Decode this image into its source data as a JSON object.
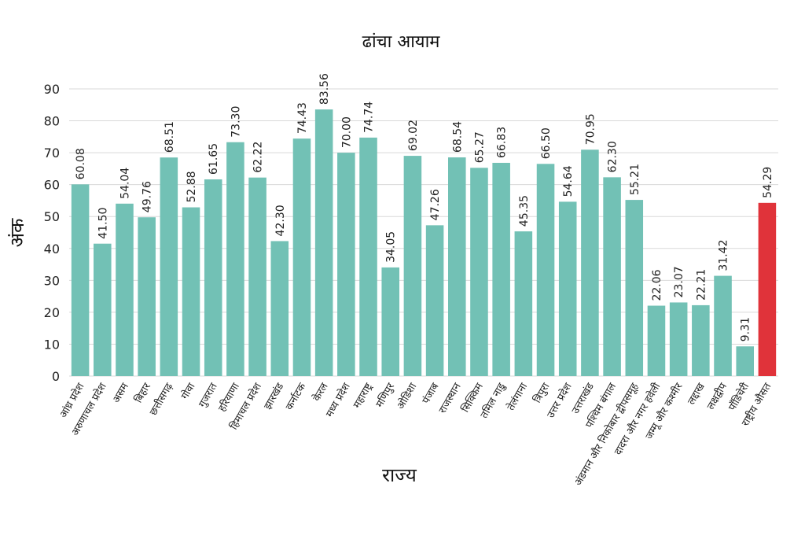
{
  "chart_data": {
    "type": "bar",
    "title": "ढांचा आयाम",
    "xlabel": "राज्य",
    "ylabel": "अंक",
    "ylim": [
      0,
      90
    ],
    "yticks": [
      0,
      10,
      20,
      30,
      40,
      50,
      60,
      70,
      80,
      90
    ],
    "grid": true,
    "categories": [
      "आंध्र प्रदेश",
      "अरुणाचल प्रदेश",
      "असम",
      "बिहार",
      "छत्तीसगढ़",
      "गोवा",
      "गुजरात",
      "हरियाणा",
      "हिमाचल प्रदेश",
      "झारखंड",
      "कर्नाटक",
      "केरल",
      "मध्य प्रदेश",
      "महाराष्ट्र",
      "मणिपुर",
      "ओडिशा",
      "पंजाब",
      "राजस्थान",
      "सिक्किम",
      "तमिल नाडु",
      "तेलंगाना",
      "त्रिपुरा",
      "उत्तर प्रदेश",
      "उत्तराखंड",
      "पश्चिम बंगाल",
      "अंडमान और निकोबार द्वीपसमूह",
      "दादरा और नगर हवेली",
      "जम्मू और कश्मीर",
      "लद्दाख",
      "लक्षद्वीप",
      "पॉंडिचेरी",
      "राष्ट्रीय औसत"
    ],
    "value_labels": [
      "60.08",
      "41.50",
      "54.04",
      "49.76",
      "68.51",
      "52.88",
      "61.65",
      "73.30",
      "62.22",
      "42.30",
      "74.43",
      "83.56",
      "70.00",
      "74.74",
      "34.05",
      "69.02",
      "47.26",
      "68.54",
      "65.27",
      "66.83",
      "45.35",
      "66.50",
      "54.64",
      "70.95",
      "62.30",
      "55.21",
      "22.06",
      "23.07",
      "22.21",
      "31.42",
      "9.31",
      "54.29"
    ],
    "values": [
      60.08,
      41.5,
      54.04,
      49.76,
      68.51,
      52.88,
      61.65,
      73.3,
      62.22,
      42.3,
      74.43,
      83.56,
      70.0,
      74.74,
      34.05,
      69.02,
      47.26,
      68.54,
      65.27,
      66.83,
      45.35,
      66.5,
      54.64,
      70.95,
      62.3,
      55.21,
      22.06,
      23.07,
      22.21,
      31.42,
      9.31,
      54.29
    ],
    "colors": {
      "bar": "#72c1b5",
      "highlight": "#e0333a"
    },
    "highlight_index": 31
  }
}
